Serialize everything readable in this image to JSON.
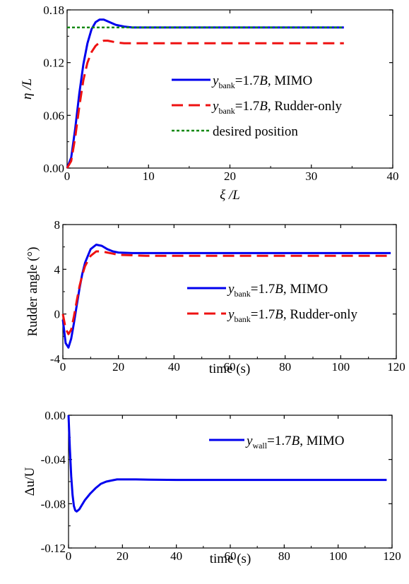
{
  "chart_data": [
    {
      "type": "line",
      "xlabel": "ξ /L",
      "ylabel": "η /L",
      "xlim": [
        0,
        40
      ],
      "ylim": [
        0,
        0.18
      ],
      "xticks": [
        "0",
        "10",
        "20",
        "30",
        "40"
      ],
      "yticks": [
        "0.00",
        "0.06",
        "0.12",
        "0.18"
      ],
      "legend_position": "center-right",
      "series": [
        {
          "name": "ybank=1.7B, MIMO",
          "legend": {
            "var": "y",
            "sub": "bank",
            "mid": "=1.7",
            "ital": "B",
            "rest": ", MIMO"
          },
          "color": "#0000ee",
          "dash": "solid",
          "x": [
            0,
            0.5,
            1,
            1.5,
            2,
            2.5,
            3,
            3.5,
            4,
            4.5,
            5,
            6,
            7,
            8,
            9,
            10,
            15,
            20,
            25,
            30,
            34
          ],
          "y": [
            0,
            0.012,
            0.045,
            0.085,
            0.118,
            0.142,
            0.158,
            0.166,
            0.169,
            0.169,
            0.167,
            0.163,
            0.161,
            0.16,
            0.16,
            0.16,
            0.16,
            0.16,
            0.16,
            0.16,
            0.16
          ]
        },
        {
          "name": "ybank=1.7B, Rudder-only",
          "legend": {
            "var": "y",
            "sub": "bank",
            "mid": "=1.7",
            "ital": "B",
            "rest": ", Rudder-only"
          },
          "color": "#ee1111",
          "dash": "dashed",
          "x": [
            0,
            0.5,
            1,
            1.5,
            2,
            2.5,
            3,
            3.5,
            4,
            4.5,
            5,
            6,
            7,
            8,
            10,
            15,
            20,
            25,
            30,
            34
          ],
          "y": [
            0,
            0.008,
            0.035,
            0.07,
            0.1,
            0.12,
            0.132,
            0.139,
            0.143,
            0.145,
            0.145,
            0.143,
            0.142,
            0.142,
            0.142,
            0.142,
            0.142,
            0.142,
            0.142,
            0.142
          ]
        },
        {
          "name": "desired position",
          "legend": {
            "var": "",
            "sub": "",
            "mid": "desired position",
            "ital": "",
            "rest": ""
          },
          "color": "#118811",
          "dash": "dotted",
          "x": [
            0,
            34
          ],
          "y": [
            0.16,
            0.16
          ]
        }
      ]
    },
    {
      "type": "line",
      "xlabel": "time (s)",
      "ylabel": "Rudder angle (°)",
      "xlim": [
        0,
        120
      ],
      "ylim": [
        -4,
        8
      ],
      "xticks": [
        "0",
        "20",
        "40",
        "60",
        "80",
        "100",
        "120"
      ],
      "yticks": [
        "-4",
        "0",
        "4",
        "8"
      ],
      "legend_position": "center-right",
      "series": [
        {
          "name": "ybank=1.7B, MIMO",
          "legend": {
            "var": "y",
            "sub": "bank",
            "mid": "=1.7",
            "ital": "B",
            "rest": ", MIMO"
          },
          "color": "#0000ee",
          "dash": "solid",
          "x": [
            0,
            1,
            2,
            3,
            4,
            5,
            6,
            7,
            8,
            10,
            12,
            14,
            16,
            18,
            20,
            25,
            30,
            40,
            60,
            80,
            100,
            118
          ],
          "y": [
            -0.5,
            -2.6,
            -3.0,
            -2.2,
            -0.8,
            0.8,
            2.3,
            3.6,
            4.6,
            5.8,
            6.2,
            6.1,
            5.8,
            5.6,
            5.5,
            5.45,
            5.45,
            5.45,
            5.45,
            5.45,
            5.45,
            5.45
          ]
        },
        {
          "name": "ybank=1.7B, Rudder-only",
          "legend": {
            "var": "y",
            "sub": "bank",
            "mid": "=1.7",
            "ital": "B",
            "rest": ", Rudder-only"
          },
          "color": "#ee1111",
          "dash": "dashed",
          "x": [
            0,
            1,
            2,
            3,
            4,
            5,
            6,
            7,
            8,
            10,
            12,
            14,
            16,
            18,
            20,
            25,
            30,
            40,
            60,
            80,
            100,
            118
          ],
          "y": [
            0,
            -1.3,
            -1.8,
            -1.4,
            -0.2,
            1.2,
            2.5,
            3.5,
            4.3,
            5.2,
            5.6,
            5.6,
            5.5,
            5.4,
            5.3,
            5.25,
            5.2,
            5.2,
            5.2,
            5.2,
            5.2,
            5.2
          ]
        }
      ]
    },
    {
      "type": "line",
      "xlabel": "time (s)",
      "ylabel": "Δu/U",
      "xlim": [
        0,
        120
      ],
      "ylim": [
        -0.12,
        0
      ],
      "xticks": [
        "0",
        "20",
        "40",
        "60",
        "80",
        "100",
        "120"
      ],
      "yticks": [
        "-0.12",
        "-0.08",
        "-0.04",
        "0.00"
      ],
      "legend_position": "top-right",
      "series": [
        {
          "name": "ywall=1.7B, MIMO",
          "legend": {
            "var": "y",
            "sub": "wall",
            "mid": "=1.7",
            "ital": "B",
            "rest": ", MIMO"
          },
          "color": "#0000ee",
          "dash": "solid",
          "x": [
            0,
            0.5,
            1,
            1.5,
            2,
            2.5,
            3,
            4,
            5,
            6,
            8,
            10,
            12,
            14,
            16,
            18,
            20,
            25,
            30,
            40,
            60,
            80,
            100,
            118
          ],
          "y": [
            0,
            -0.03,
            -0.055,
            -0.072,
            -0.082,
            -0.086,
            -0.087,
            -0.085,
            -0.081,
            -0.077,
            -0.071,
            -0.066,
            -0.062,
            -0.06,
            -0.059,
            -0.058,
            -0.058,
            -0.058,
            -0.0582,
            -0.0585,
            -0.0585,
            -0.0585,
            -0.0585,
            -0.0585
          ]
        }
      ]
    }
  ]
}
